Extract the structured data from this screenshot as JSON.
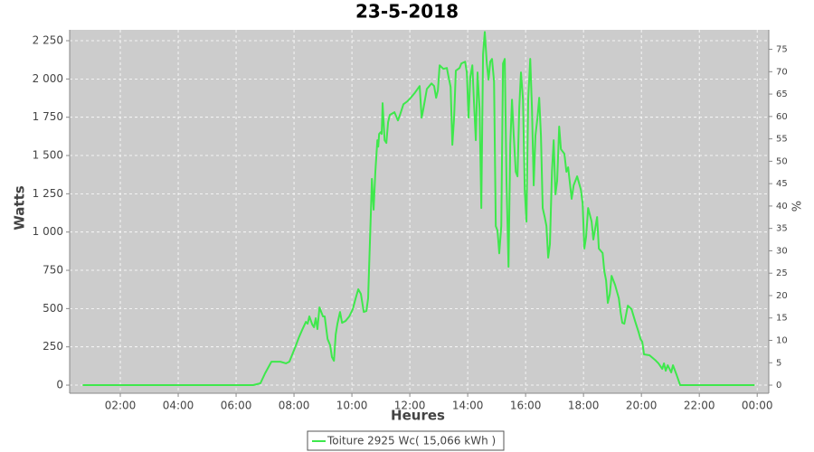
{
  "chart_data": {
    "type": "line",
    "title": "23-5-2018",
    "x_label": "Heures",
    "y_label": "Watts",
    "y2_label": "%",
    "x": [
      0.7,
      6.3,
      6.59,
      6.84,
      7.0,
      7.22,
      7.53,
      7.72,
      7.84,
      8.03,
      8.16,
      8.28,
      8.41,
      8.47,
      8.53,
      8.63,
      8.69,
      8.75,
      8.81,
      8.88,
      9.0,
      9.06,
      9.16,
      9.25,
      9.31,
      9.38,
      9.44,
      9.5,
      9.59,
      9.66,
      9.78,
      9.91,
      10.03,
      10.13,
      10.22,
      10.31,
      10.41,
      10.5,
      10.56,
      10.59,
      10.66,
      10.69,
      10.72,
      10.75,
      10.81,
      10.88,
      10.91,
      10.94,
      11.0,
      11.03,
      11.06,
      11.13,
      11.19,
      11.25,
      11.31,
      11.47,
      11.59,
      11.66,
      11.78,
      11.91,
      12.03,
      12.16,
      12.34,
      12.41,
      12.47,
      12.59,
      12.75,
      12.84,
      12.91,
      12.97,
      13.03,
      13.16,
      13.28,
      13.34,
      13.41,
      13.47,
      13.53,
      13.59,
      13.72,
      13.78,
      13.91,
      13.97,
      14.03,
      14.09,
      14.16,
      14.22,
      14.28,
      14.34,
      14.41,
      14.47,
      14.53,
      14.59,
      14.66,
      14.72,
      14.78,
      14.84,
      14.91,
      14.97,
      15.03,
      15.09,
      15.16,
      15.22,
      15.28,
      15.34,
      15.41,
      15.47,
      15.53,
      15.59,
      15.66,
      15.72,
      15.78,
      15.84,
      15.91,
      15.97,
      16.03,
      16.09,
      16.16,
      16.22,
      16.28,
      16.34,
      16.41,
      16.47,
      16.53,
      16.59,
      16.66,
      16.72,
      16.78,
      16.84,
      16.91,
      16.97,
      17.03,
      17.09,
      17.16,
      17.22,
      17.34,
      17.41,
      17.47,
      17.59,
      17.66,
      17.78,
      17.91,
      17.97,
      18.03,
      18.09,
      18.16,
      18.28,
      18.34,
      18.47,
      18.53,
      18.66,
      18.72,
      18.78,
      18.84,
      18.91,
      18.97,
      19.09,
      19.22,
      19.28,
      19.34,
      19.41,
      19.53,
      19.66,
      19.78,
      19.91,
      19.97,
      20.03,
      20.09,
      20.28,
      20.47,
      20.59,
      20.72,
      20.78,
      20.84,
      20.91,
      21.03,
      21.09,
      21.22,
      21.34,
      21.59,
      23.91
    ],
    "series": [
      {
        "name": "Toiture 2925 Wc( 15,066 kWh )",
        "color": "#3ee84c",
        "values": [
          0,
          0,
          0,
          12,
          77,
          153,
          153,
          142,
          153,
          242,
          307,
          360,
          413,
          401,
          449,
          396,
          378,
          437,
          366,
          508,
          449,
          449,
          301,
          260,
          183,
          159,
          330,
          401,
          478,
          407,
          419,
          449,
          496,
          567,
          626,
          596,
          478,
          484,
          567,
          744,
          1157,
          1347,
          1246,
          1146,
          1394,
          1600,
          1558,
          1641,
          1653,
          1641,
          1842,
          1600,
          1582,
          1718,
          1765,
          1783,
          1729,
          1765,
          1835,
          1853,
          1877,
          1906,
          1954,
          1747,
          1806,
          1935,
          1971,
          1954,
          1877,
          1925,
          2089,
          2066,
          2072,
          2013,
          1948,
          1570,
          1747,
          2054,
          2072,
          2101,
          2113,
          2043,
          1747,
          2013,
          2089,
          1836,
          1600,
          2043,
          1806,
          1157,
          2160,
          2307,
          2101,
          1995,
          2113,
          2131,
          1983,
          1039,
          1009,
          861,
          1039,
          2101,
          2131,
          1334,
          773,
          1570,
          1865,
          1630,
          1394,
          1364,
          1806,
          2043,
          1865,
          1276,
          1068,
          1865,
          2131,
          1806,
          1305,
          1630,
          1747,
          1877,
          1630,
          1157,
          1098,
          1039,
          833,
          921,
          1394,
          1600,
          1246,
          1334,
          1689,
          1541,
          1511,
          1394,
          1423,
          1217,
          1305,
          1364,
          1276,
          1187,
          892,
          969,
          1157,
          1068,
          951,
          1098,
          892,
          863,
          744,
          685,
          537,
          596,
          714,
          655,
          567,
          478,
          407,
          401,
          519,
          496,
          419,
          342,
          301,
          283,
          201,
          195,
          165,
          142,
          106,
          142,
          94,
          130,
          83,
          130,
          65,
          0,
          0,
          0
        ]
      }
    ],
    "xlim": [
      0.25,
      24.4
    ],
    "xticks": [
      {
        "value": 2,
        "label": "02:00"
      },
      {
        "value": 4,
        "label": "04:00"
      },
      {
        "value": 6,
        "label": "06:00"
      },
      {
        "value": 8,
        "label": "08:00"
      },
      {
        "value": 10,
        "label": "10:00"
      },
      {
        "value": 12,
        "label": "12:00"
      },
      {
        "value": 14,
        "label": "14:00"
      },
      {
        "value": 16,
        "label": "16:00"
      },
      {
        "value": 18,
        "label": "18:00"
      },
      {
        "value": 20,
        "label": "20:00"
      },
      {
        "value": 22,
        "label": "22:00"
      },
      {
        "value": 24,
        "label": "00:00"
      }
    ],
    "ylim": [
      -53,
      2321
    ],
    "yticks": [
      0,
      250,
      500,
      750,
      {
        "value": 1000,
        "label": "1 000"
      },
      {
        "value": 1250,
        "label": "1 250"
      },
      {
        "value": 1500,
        "label": "1 500"
      },
      {
        "value": 1750,
        "label": "1 750"
      },
      {
        "value": 2000,
        "label": "2 000"
      },
      {
        "value": 2250,
        "label": "2 250"
      }
    ],
    "y2lim": [
      -1.81,
      79.35
    ],
    "y2ticks": [
      0,
      5,
      10,
      15,
      20,
      25,
      30,
      35,
      40,
      45,
      50,
      55,
      60,
      65,
      70,
      75
    ],
    "grid": true
  }
}
